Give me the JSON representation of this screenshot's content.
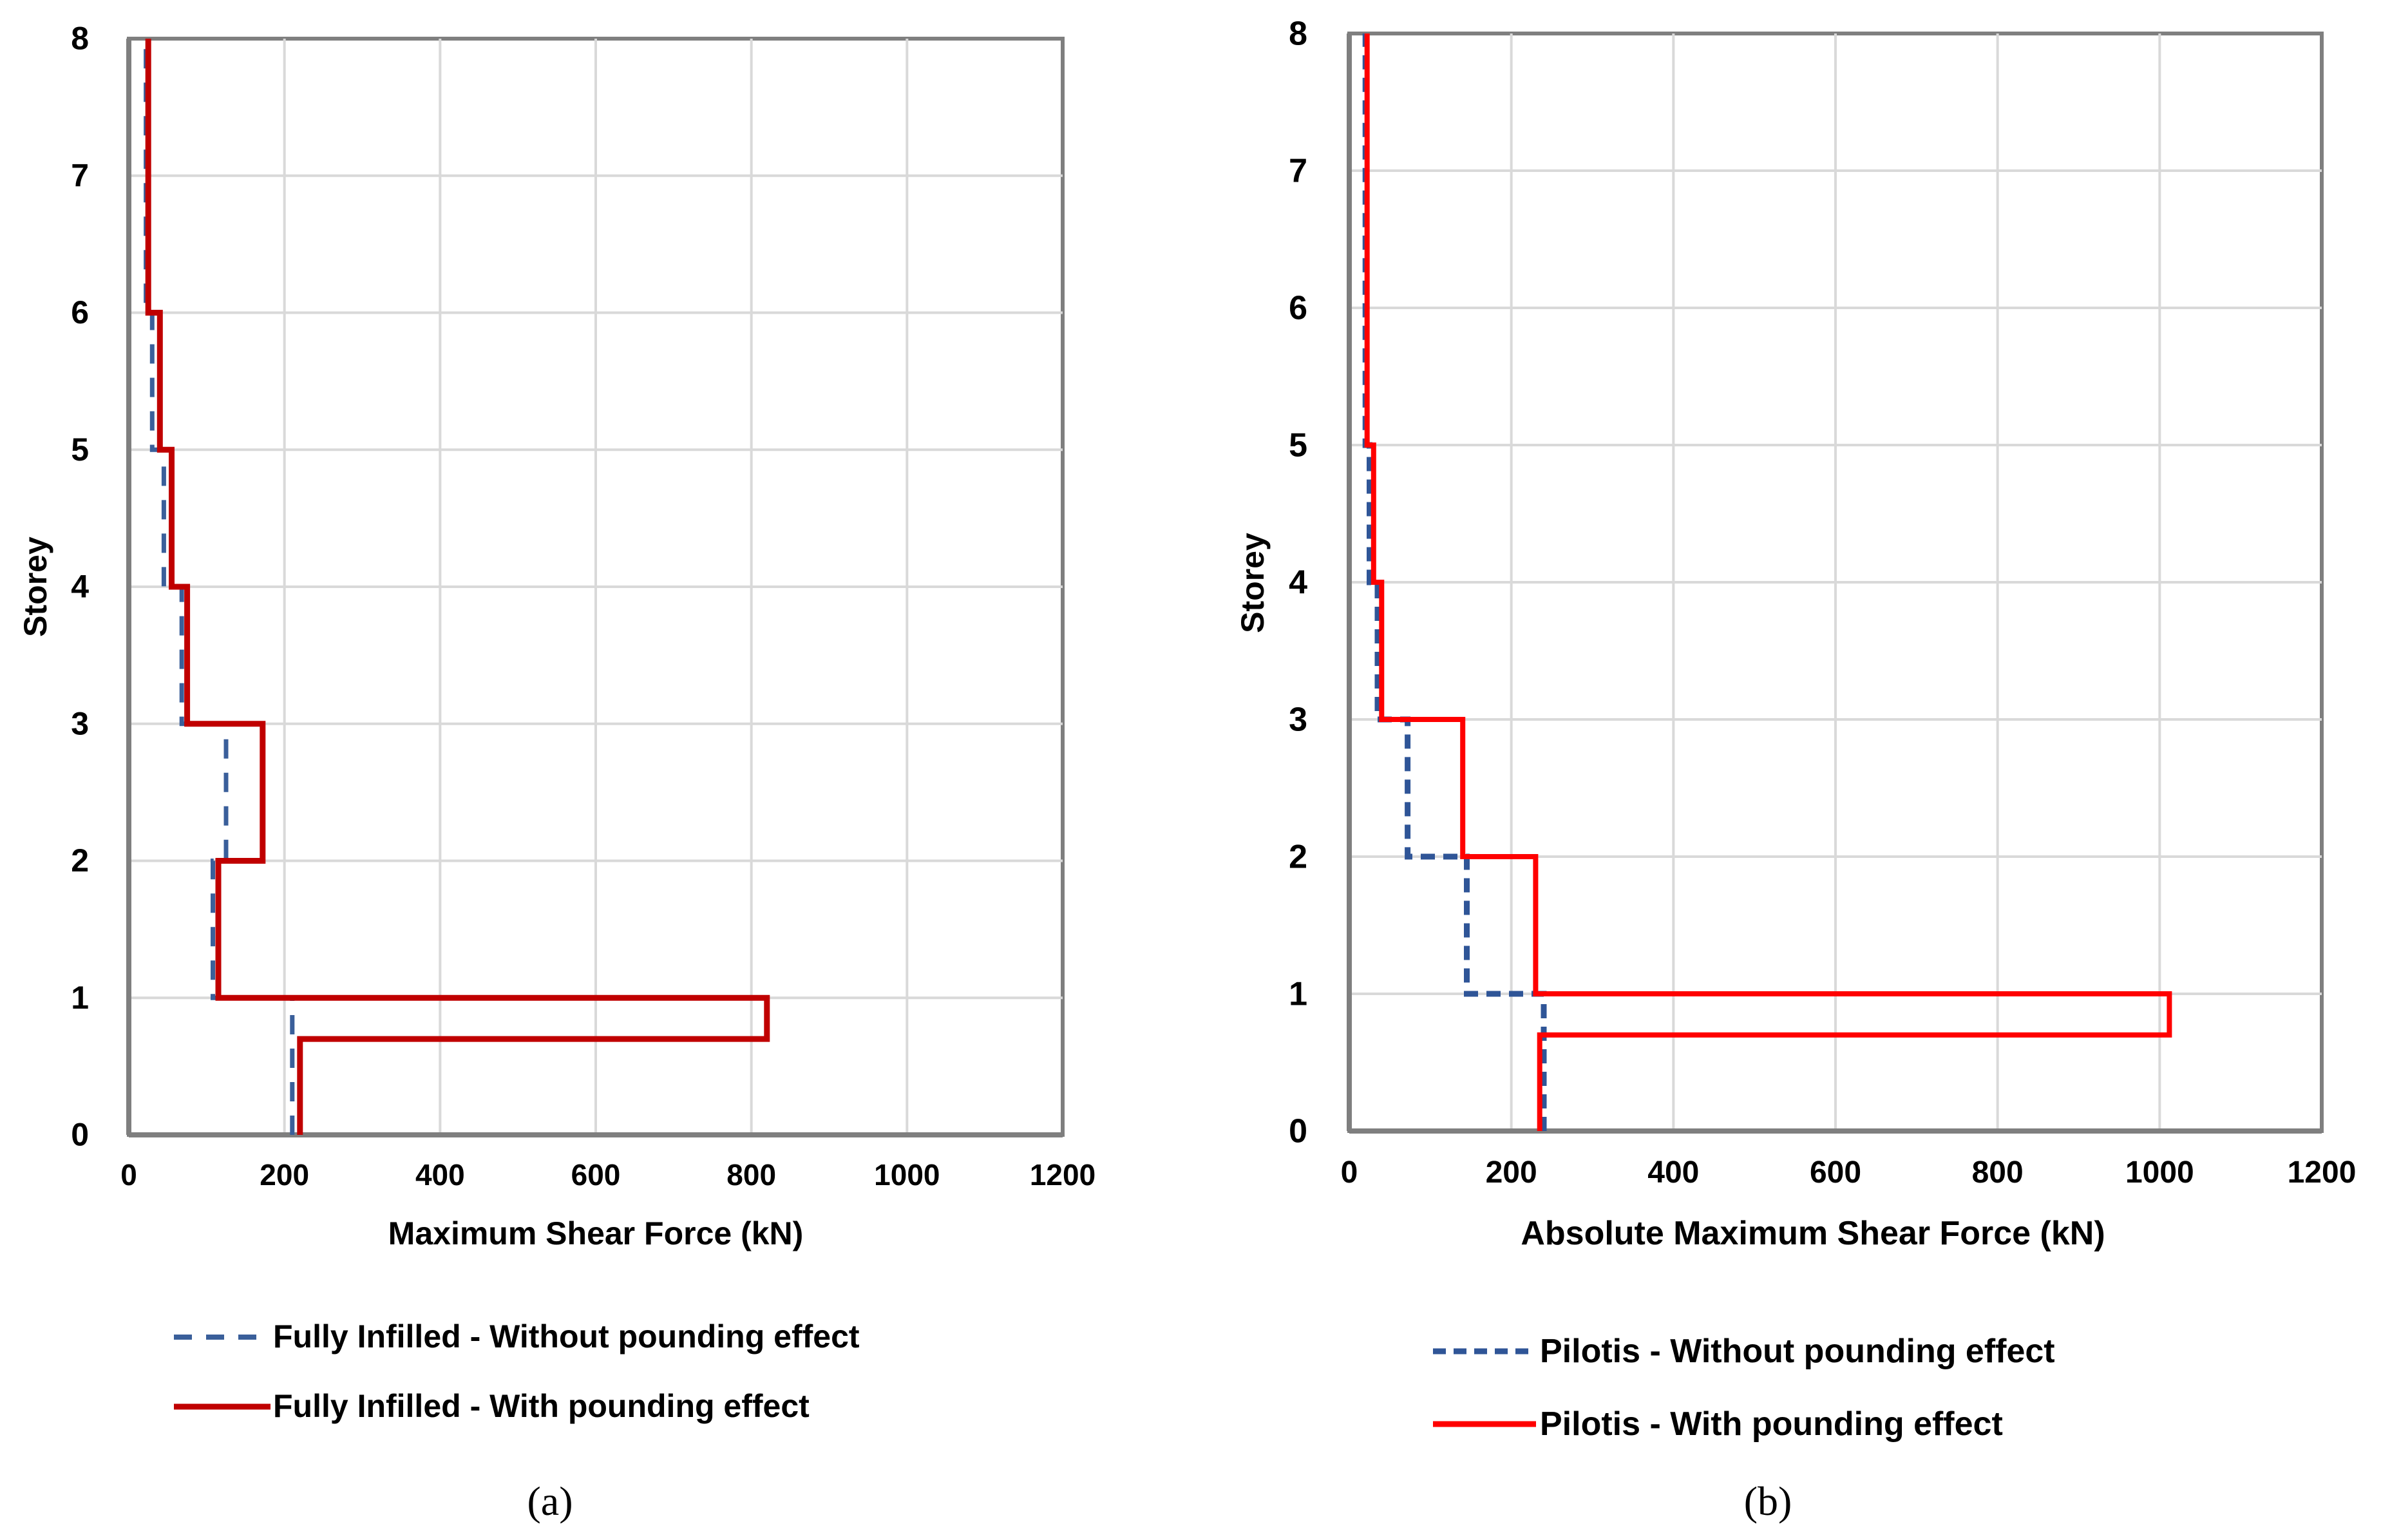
{
  "chart_data": [
    {
      "type": "line",
      "panel": "a",
      "caption": "(a)",
      "title": "",
      "xlabel": "Maximum Shear Force (kN)",
      "ylabel": "Storey",
      "xlim": [
        0,
        1200
      ],
      "ylim": [
        0,
        8
      ],
      "xticks": [
        "0",
        "200",
        "400",
        "600",
        "800",
        "1000",
        "1200"
      ],
      "yticks": [
        "0",
        "1",
        "2",
        "3",
        "4",
        "5",
        "6",
        "7",
        "8"
      ],
      "grid": true,
      "legend_position": "bottom",
      "series": [
        {
          "name": "Fully Infilled - Without pounding effect",
          "style": "dashed",
          "color": "#3a5f9a",
          "points": [
            [
              210,
              0
            ],
            [
              210,
              1
            ],
            [
              108,
              1
            ],
            [
              108,
              2
            ],
            [
              125,
              2
            ],
            [
              125,
              3
            ],
            [
              68,
              3
            ],
            [
              68,
              4
            ],
            [
              45,
              4
            ],
            [
              45,
              5
            ],
            [
              30,
              5
            ],
            [
              30,
              6
            ],
            [
              22,
              6
            ],
            [
              22,
              8
            ]
          ]
        },
        {
          "name": "Fully Infilled - With pounding effect",
          "style": "solid",
          "color": "#c00000",
          "points": [
            [
              220,
              0
            ],
            [
              220,
              0.7
            ],
            [
              820,
              0.7
            ],
            [
              820,
              1
            ],
            [
              115,
              1
            ],
            [
              115,
              2
            ],
            [
              172,
              2
            ],
            [
              172,
              3
            ],
            [
              75,
              3
            ],
            [
              75,
              4
            ],
            [
              55,
              4
            ],
            [
              55,
              5
            ],
            [
              40,
              5
            ],
            [
              40,
              6
            ],
            [
              25,
              6
            ],
            [
              25,
              8
            ]
          ]
        }
      ]
    },
    {
      "type": "line",
      "panel": "b",
      "caption": "(b)",
      "title": "",
      "xlabel": "Absolute Maximum Shear Force (kN)",
      "ylabel": "Storey",
      "xlim": [
        0,
        1200
      ],
      "ylim": [
        0,
        8
      ],
      "xticks": [
        "0",
        "200",
        "400",
        "600",
        "800",
        "1000",
        "1200"
      ],
      "yticks": [
        "0",
        "1",
        "2",
        "3",
        "4",
        "5",
        "6",
        "7",
        "8"
      ],
      "grid": true,
      "legend_position": "bottom",
      "series": [
        {
          "name": "Pilotis - Without pounding effect",
          "style": "dashed",
          "color": "#2f5597",
          "points": [
            [
              240,
              0
            ],
            [
              240,
              1
            ],
            [
              145,
              1
            ],
            [
              145,
              2
            ],
            [
              72,
              2
            ],
            [
              72,
              3
            ],
            [
              35,
              3
            ],
            [
              35,
              4
            ],
            [
              25,
              4
            ],
            [
              25,
              5
            ],
            [
              20,
              5
            ],
            [
              20,
              8
            ]
          ]
        },
        {
          "name": "Pilotis - With pounding effect",
          "style": "solid",
          "color": "#ff0000",
          "points": [
            [
              235,
              0
            ],
            [
              235,
              0.7
            ],
            [
              1012,
              0.7
            ],
            [
              1012,
              1
            ],
            [
              230,
              1
            ],
            [
              230,
              2
            ],
            [
              140,
              2
            ],
            [
              140,
              3
            ],
            [
              40,
              3
            ],
            [
              40,
              4
            ],
            [
              30,
              4
            ],
            [
              30,
              5
            ],
            [
              22,
              5
            ],
            [
              22,
              8
            ]
          ]
        }
      ]
    }
  ]
}
